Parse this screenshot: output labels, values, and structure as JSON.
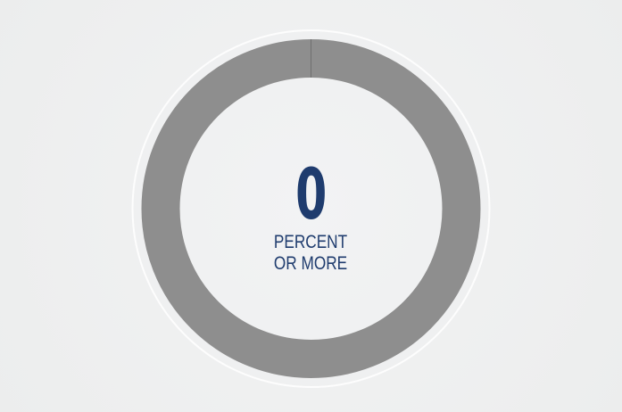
{
  "gauge": {
    "value": 0,
    "value_text": "0",
    "caption_line1": "PERCENT",
    "caption_line2": "OR MORE",
    "track_color": "#8e8e8e",
    "fill_color": "#1f3c6e",
    "text_color": "#1f3c6e",
    "outer_ring_color": "#ffffff"
  }
}
